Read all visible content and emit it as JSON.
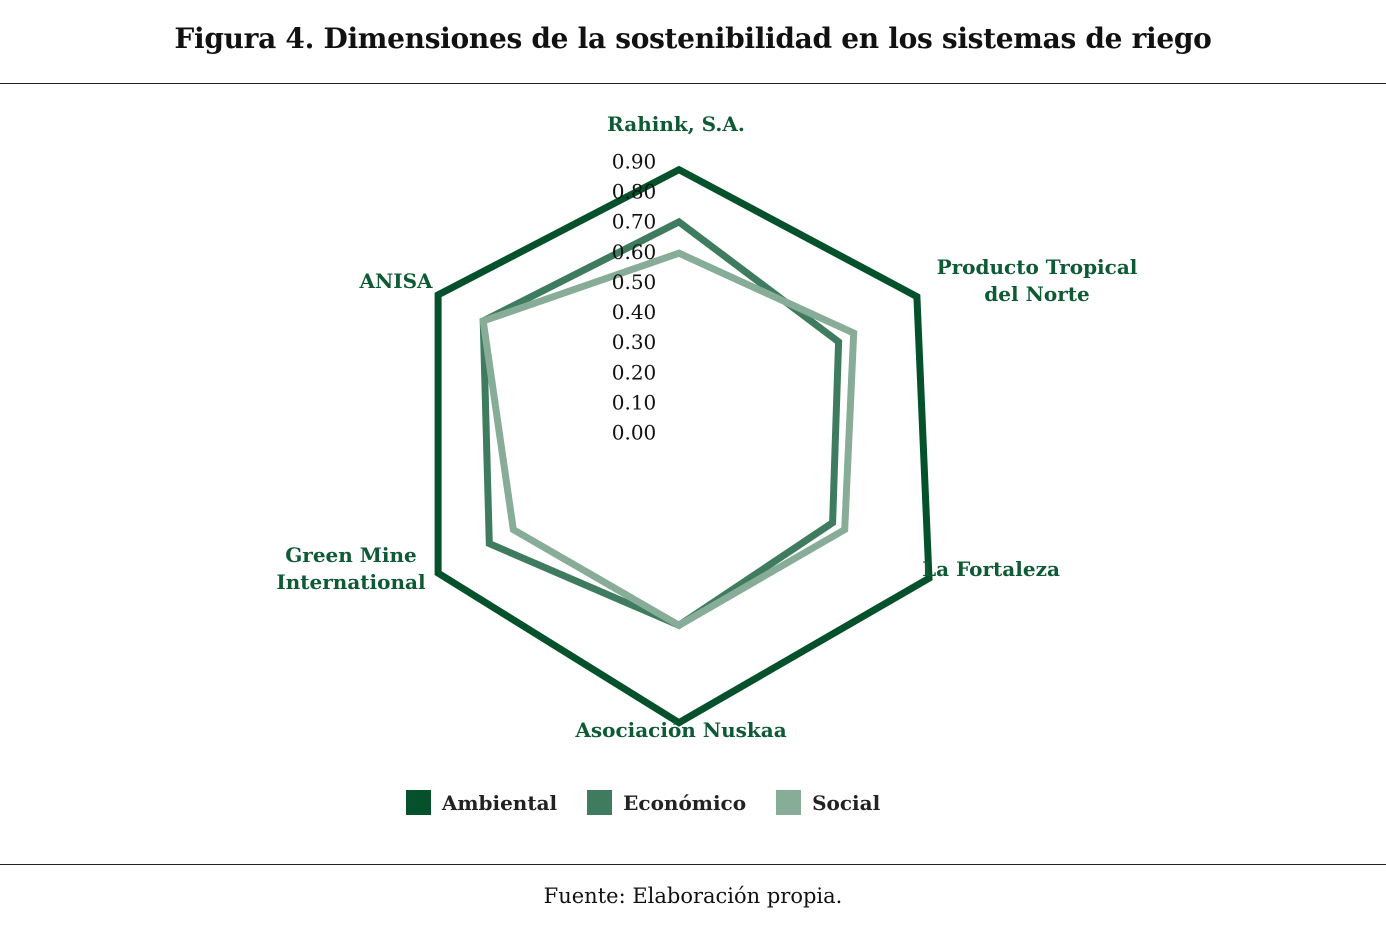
{
  "figure": {
    "title": "Figura 4. Dimensiones de la sostenibilidad en los sistemas de riego",
    "source": "Fuente: Elaboración propia."
  },
  "colors": {
    "label": "#0e5a35"
  },
  "chart_data": {
    "type": "radar",
    "title": "Figura 4. Dimensiones de la sostenibilidad en los sistemas de riego",
    "categories": [
      "Rahink, S.A.",
      "Producto Tropical del Norte",
      "La Fortaleza",
      "Asociación Nuskaa",
      "Green Mine International",
      "ANISA"
    ],
    "category_lines": [
      [
        "Rahink, S.A."
      ],
      [
        "Producto Tropical",
        "del Norte"
      ],
      [
        "La Fortaleza"
      ],
      [
        "Asociación Nuskaa"
      ],
      [
        "Green Mine",
        "International"
      ],
      [
        "ANISA"
      ]
    ],
    "r_ticks": [
      "0.00",
      "0.10",
      "0.20",
      "0.30",
      "0.40",
      "0.50",
      "0.60",
      "0.70",
      "0.80",
      "0.90"
    ],
    "rlim": [
      0,
      0.9
    ],
    "grid": false,
    "legend_position": "bottom",
    "series": [
      {
        "name": "Ambiental",
        "color": "#04512c",
        "values": [
          0.76,
          0.79,
          0.83,
          0.83,
          0.8,
          0.8
        ]
      },
      {
        "name": "Económico",
        "color": "#3f7c5f",
        "values": [
          0.61,
          0.53,
          0.51,
          0.55,
          0.63,
          0.65
        ]
      },
      {
        "name": "Social",
        "color": "#87ac98",
        "values": [
          0.52,
          0.58,
          0.55,
          0.55,
          0.55,
          0.65
        ]
      }
    ]
  }
}
